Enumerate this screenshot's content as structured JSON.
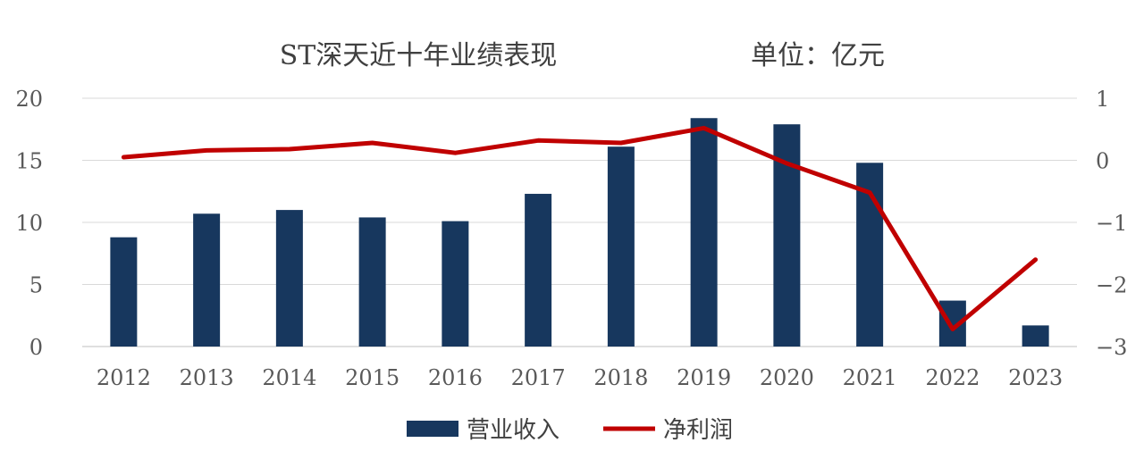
{
  "chart_data": {
    "type": "bar+line",
    "title": "ST深天近十年业绩表现",
    "unit_label": "单位：亿元",
    "categories": [
      "2012",
      "2013",
      "2014",
      "2015",
      "2016",
      "2017",
      "2018",
      "2019",
      "2020",
      "2021",
      "2022",
      "2023"
    ],
    "series": [
      {
        "name": "营业收入",
        "type": "bar",
        "axis": "left",
        "color": "#17375e",
        "values": [
          8.8,
          10.7,
          11.0,
          10.4,
          10.1,
          12.3,
          16.1,
          18.4,
          17.9,
          14.8,
          3.7,
          1.7
        ]
      },
      {
        "name": "净利润",
        "type": "line",
        "axis": "right",
        "color": "#c00000",
        "values": [
          0.05,
          0.16,
          0.18,
          0.28,
          0.12,
          0.32,
          0.28,
          0.52,
          -0.05,
          -0.52,
          -2.72,
          -1.6
        ]
      }
    ],
    "y_left": {
      "min": 0,
      "max": 20,
      "ticks": [
        "0",
        "5",
        "10",
        "15",
        "20"
      ]
    },
    "y_right": {
      "min": -3,
      "max": 1,
      "ticks": [
        "−3",
        "−2",
        "−1",
        "0",
        "1"
      ]
    },
    "grid": true,
    "legend_position": "bottom"
  }
}
